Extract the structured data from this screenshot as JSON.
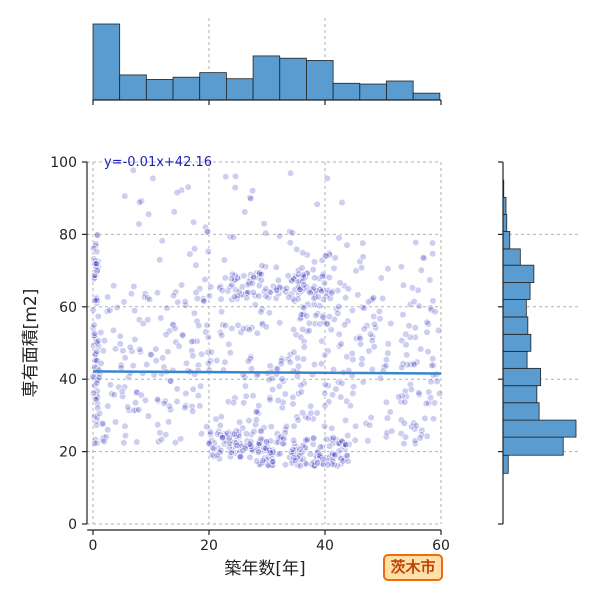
{
  "chart_data": {
    "type": "scatter",
    "xlabel": "築年数[年]",
    "ylabel": "専有面積[m2]",
    "xlim": [
      -1,
      60
    ],
    "ylim": [
      0,
      100
    ],
    "xticks": [
      0,
      20,
      40,
      60
    ],
    "yticks": [
      0,
      20,
      40,
      60,
      80,
      100
    ],
    "grid": true,
    "regression": {
      "label": "y=-0.01x+42.16",
      "slope": -0.01,
      "intercept": 42.16
    },
    "badge": "茨木市",
    "colors": {
      "points": "#2222bb",
      "hist": "#5a9bd0",
      "line": "#3a86c8",
      "badge_bg": "#ffe0a8",
      "badge_border": "#f06a10",
      "badge_text": "#c0410a"
    },
    "top_histogram": {
      "bin_edges": [
        0,
        4.6,
        9.2,
        13.8,
        18.4,
        23.0,
        27.6,
        32.2,
        36.8,
        41.4,
        46.0,
        50.6,
        55.2,
        59.8
      ],
      "counts": [
        100,
        33,
        27,
        30,
        36,
        28,
        58,
        55,
        52,
        22,
        21,
        25,
        9
      ]
    },
    "right_histogram": {
      "bin_edges": [
        14,
        19,
        24,
        28.7,
        33.5,
        38.2,
        43,
        47.7,
        52.4,
        57.2,
        62,
        66.7,
        71.5,
        76,
        80.8,
        85.5,
        90.2,
        95
      ],
      "counts": [
        7,
        80,
        97,
        48,
        45,
        50,
        32,
        37,
        33,
        31,
        36,
        41,
        23,
        9,
        5,
        4,
        1
      ]
    },
    "clusters": [
      {
        "xr": [
          0,
          1
        ],
        "yr": [
          22,
          80
        ],
        "n": 70
      },
      {
        "xr": [
          1,
          60
        ],
        "yr": [
          45,
          66
        ],
        "n": 220
      },
      {
        "xr": [
          1,
          60
        ],
        "yr": [
          22,
          40
        ],
        "n": 190
      },
      {
        "xr": [
          20,
          28
        ],
        "yr": [
          18,
          26
        ],
        "n": 70
      },
      {
        "xr": [
          28,
          44
        ],
        "yr": [
          16,
          24
        ],
        "n": 140
      },
      {
        "xr": [
          22,
          40
        ],
        "yr": [
          62,
          70
        ],
        "n": 90
      },
      {
        "xr": [
          35,
          42
        ],
        "yr": [
          55,
          75
        ],
        "n": 40
      },
      {
        "xr": [
          10,
          60
        ],
        "yr": [
          66,
          80
        ],
        "n": 40
      },
      {
        "xr": [
          5,
          45
        ],
        "yr": [
          80,
          98
        ],
        "n": 30
      },
      {
        "xr": [
          0,
          60
        ],
        "yr": [
          40,
          45
        ],
        "n": 70
      }
    ]
  }
}
